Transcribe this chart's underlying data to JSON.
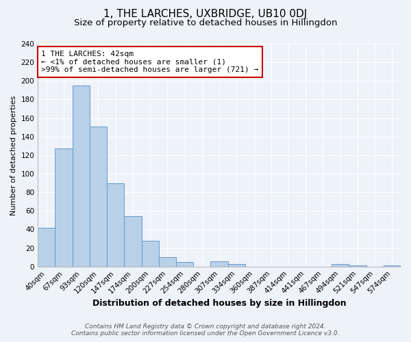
{
  "title": "1, THE LARCHES, UXBRIDGE, UB10 0DJ",
  "subtitle": "Size of property relative to detached houses in Hillingdon",
  "xlabel": "Distribution of detached houses by size in Hillingdon",
  "ylabel": "Number of detached properties",
  "footer1": "Contains HM Land Registry data © Crown copyright and database right 2024.",
  "footer2": "Contains public sector information licensed under the Open Government Licence v3.0.",
  "categories": [
    "40sqm",
    "67sqm",
    "93sqm",
    "120sqm",
    "147sqm",
    "174sqm",
    "200sqm",
    "227sqm",
    "254sqm",
    "280sqm",
    "307sqm",
    "334sqm",
    "360sqm",
    "387sqm",
    "414sqm",
    "441sqm",
    "467sqm",
    "494sqm",
    "521sqm",
    "547sqm",
    "574sqm"
  ],
  "values": [
    42,
    127,
    195,
    151,
    90,
    54,
    28,
    10,
    5,
    0,
    6,
    3,
    0,
    0,
    0,
    0,
    0,
    3,
    1,
    0,
    1
  ],
  "bar_color": "#b8d0e8",
  "bar_edge_color": "#6699cc",
  "annotation_line1": "1 THE LARCHES: 42sqm",
  "annotation_line2": "← <1% of detached houses are smaller (1)",
  "annotation_line3": ">99% of semi-detached houses are larger (721) →",
  "annotation_box_facecolor": "white",
  "annotation_box_edgecolor": "#cc0000",
  "ylim": [
    0,
    240
  ],
  "yticks": [
    0,
    20,
    40,
    60,
    80,
    100,
    120,
    140,
    160,
    180,
    200,
    220,
    240
  ],
  "bg_color": "#eef2f9",
  "grid_color": "white",
  "title_fontsize": 11,
  "subtitle_fontsize": 9.5,
  "xlabel_fontsize": 9,
  "ylabel_fontsize": 8,
  "tick_fontsize": 7.5,
  "annotation_fontsize": 8,
  "footer_fontsize": 6.5
}
